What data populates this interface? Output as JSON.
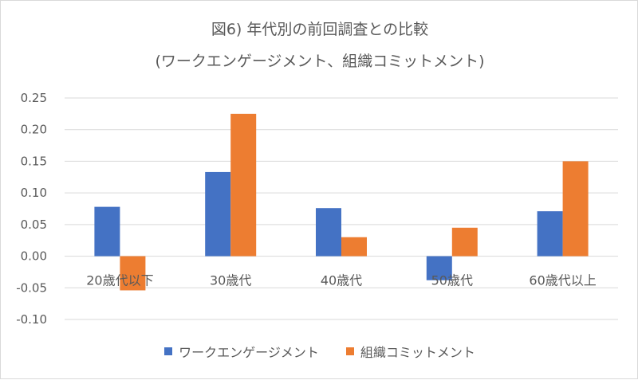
{
  "chart_data": {
    "type": "bar",
    "title_lines": [
      "図6) 年代別の前回調査との比較",
      "(ワークエンゲージメント、組織コミットメント)"
    ],
    "categories": [
      "20歳代以下",
      "30歳代",
      "40歳代",
      "50歳代",
      "60歳代以上"
    ],
    "series": [
      {
        "name": "ワークエンゲージメント",
        "color": "#4472C4",
        "values": [
          0.078,
          0.133,
          0.076,
          -0.038,
          0.071
        ]
      },
      {
        "name": "組織コミットメント",
        "color": "#ED7D31",
        "values": [
          -0.054,
          0.225,
          0.03,
          0.045,
          0.15
        ]
      }
    ],
    "y_ticks": [
      "0.25",
      "0.20",
      "0.15",
      "0.10",
      "0.05",
      "0.00",
      "-0.05",
      "-0.10"
    ],
    "ylim": [
      -0.1,
      0.25
    ],
    "grid": true,
    "legend_position": "bottom"
  }
}
